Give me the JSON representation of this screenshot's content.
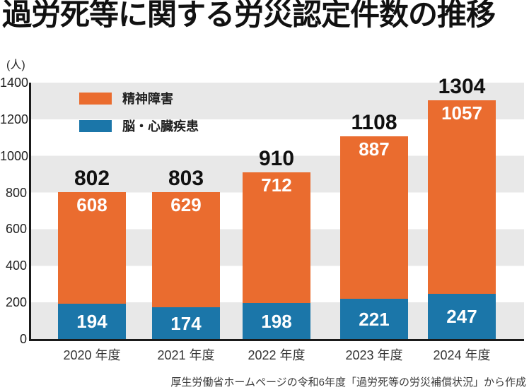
{
  "title": "過労死等に関する労災認定件数の推移",
  "footer": "厚生労働省ホームページの令和6年度「過労死等の労災補償状況」から作成",
  "chart": {
    "y_unit": "(人)"
  },
  "legend": [
    {
      "id": "mental",
      "label": "精神障害",
      "color": "#EA6C2F"
    },
    {
      "id": "brain-heart",
      "label": "脳・心臓疾患",
      "color": "#1B76A9"
    }
  ],
  "colors": {
    "mental_orange": "#EA6C2F",
    "brain_heart_blue": "#1B76A9",
    "band_gray": "#E8E8E8",
    "axis": "#1A1A1A",
    "value_text": "#FFFFFF",
    "total_text": "#111111"
  },
  "chart_data": {
    "type": "bar",
    "stacked": true,
    "title": "過労死等に関する労災認定件数の推移",
    "categories": [
      "2020 年度",
      "2021 年度",
      "2022 年度",
      "2023 年度",
      "2024 年度"
    ],
    "series": [
      {
        "name": "脳・心臓疾患",
        "color": "#1B76A9",
        "values": [
          194,
          174,
          198,
          221,
          247
        ]
      },
      {
        "name": "精神障害",
        "color": "#EA6C2F",
        "values": [
          608,
          629,
          712,
          887,
          1057
        ]
      }
    ],
    "totals": [
      802,
      803,
      910,
      1108,
      1304
    ],
    "ylabel": "(人)",
    "ylim": [
      0,
      1400
    ],
    "yticks": [
      0,
      200,
      400,
      600,
      800,
      1000,
      1200,
      1400
    ],
    "grid": "alternating-horizontal-bands-200",
    "legend_position": "top-left-inside"
  }
}
